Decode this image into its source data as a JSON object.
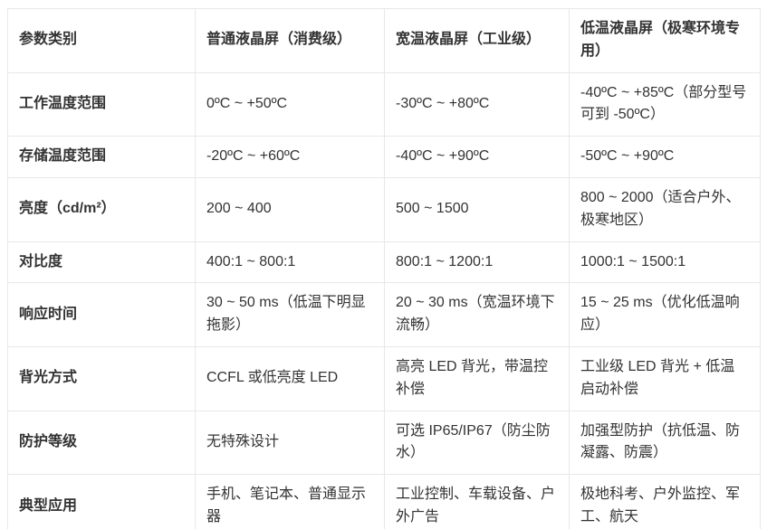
{
  "colors": {
    "background": "#ffffff",
    "border": "#e8e8e8",
    "text": "#333333"
  },
  "table": {
    "header": [
      "参数类别",
      "普通液晶屏（消费级）",
      "宽温液晶屏（工业级）",
      "低温液晶屏（极寒环境专用）"
    ],
    "rows": [
      [
        "工作温度范围",
        "0ºC ~ +50ºC",
        "-30ºC ~ +80ºC",
        "-40ºC ~ +85ºC（部分型号可到 -50ºC）"
      ],
      [
        "存储温度范围",
        "-20ºC ~ +60ºC",
        "-40ºC ~ +90ºC",
        "-50ºC ~ +90ºC"
      ],
      [
        "亮度（cd/m²）",
        "200 ~ 400",
        "500 ~ 1500",
        "800 ~ 2000（适合户外、极寒地区）"
      ],
      [
        "对比度",
        "400:1 ~ 800:1",
        "800:1 ~ 1200:1",
        "1000:1 ~ 1500:1"
      ],
      [
        "响应时间",
        "30 ~ 50 ms（低温下明显拖影）",
        "20 ~ 30 ms（宽温环境下流畅）",
        "15 ~ 25 ms（优化低温响应）"
      ],
      [
        "背光方式",
        "CCFL 或低亮度 LED",
        "高亮 LED 背光，带温控补偿",
        "工业级 LED 背光 + 低温启动补偿"
      ],
      [
        "防护等级",
        "无特殊设计",
        "可选 IP65/IP67（防尘防水）",
        "加强型防护（抗低温、防凝露、防震）"
      ],
      [
        "典型应用",
        "手机、笔记本、普通显示器",
        "工业控制、车载设备、户外广告",
        "极地科考、户外监控、军工、航天"
      ]
    ]
  }
}
